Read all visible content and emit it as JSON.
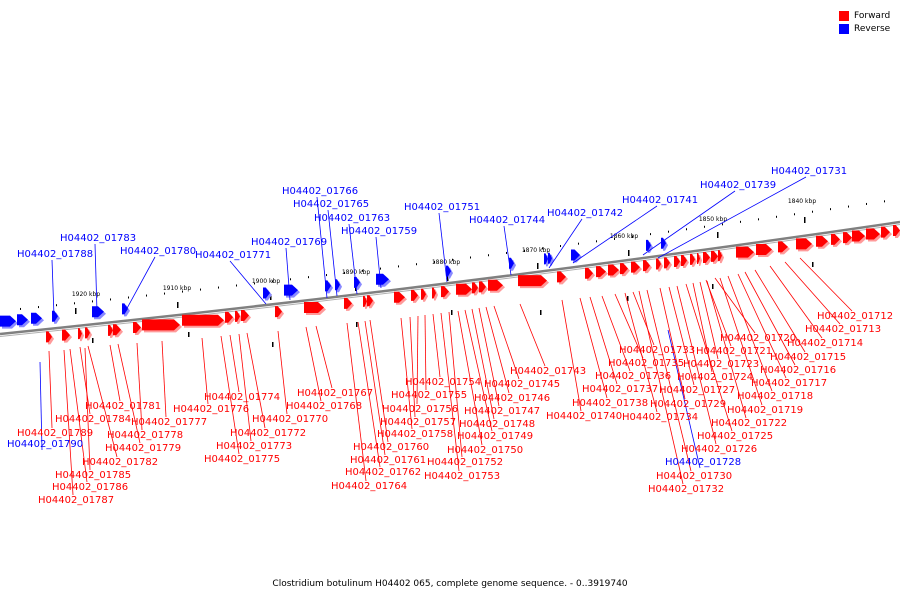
{
  "colors": {
    "forward": "#ff0000",
    "reverse": "#0000ff",
    "backbone": "#808080"
  },
  "legend": {
    "forward": "Forward",
    "reverse": "Reverse"
  },
  "caption": "Clostridium botulinum H04402 065, complete genome sequence. - 0..3919740",
  "ticks": [
    "1920 kbp",
    "1910 kbp",
    "1900 kbp",
    "1890 kbp",
    "1880 kbp",
    "1870 kbp",
    "1860 kbp",
    "1850 kbp",
    "1840 kbp"
  ],
  "reverse_labels": [
    "H04402_01731",
    "H04402_01739",
    "H04402_01741",
    "H04402_01742",
    "H04402_01744",
    "H04402_01751",
    "H04402_01759",
    "H04402_01763",
    "H04402_01765",
    "H04402_01766",
    "H04402_01769",
    "H04402_01771",
    "H04402_01780",
    "H04402_01783",
    "H04402_01788",
    "H04402_01790",
    "H04402_01728"
  ],
  "forward_labels": [
    "H04402_01712",
    "H04402_01713",
    "H04402_01714",
    "H04402_01715",
    "H04402_01716",
    "H04402_01717",
    "H04402_01718",
    "H04402_01719",
    "H04402_01720",
    "H04402_01721",
    "H04402_01722",
    "H04402_01723",
    "H04402_01724",
    "H04402_01725",
    "H04402_01726",
    "H04402_01727",
    "H04402_01729",
    "H04402_01730",
    "H04402_01732",
    "H04402_01733",
    "H04402_01734",
    "H04402_01735",
    "H04402_01736",
    "H04402_01737",
    "H04402_01738",
    "H04402_01740",
    "H04402_01743",
    "H04402_01745",
    "H04402_01746",
    "H04402_01747",
    "H04402_01748",
    "H04402_01749",
    "H04402_01750",
    "H04402_01752",
    "H04402_01753",
    "H04402_01754",
    "H04402_01755",
    "H04402_01756",
    "H04402_01757",
    "H04402_01758",
    "H04402_01760",
    "H04402_01761",
    "H04402_01762",
    "H04402_01764",
    "H04402_01767",
    "H04402_01768",
    "H04402_01770",
    "H04402_01772",
    "H04402_01773",
    "H04402_01774",
    "H04402_01775",
    "H04402_01776",
    "H04402_01777",
    "H04402_01778",
    "H04402_01779",
    "H04402_01781",
    "H04402_01782",
    "H04402_01784",
    "H04402_01785",
    "H04402_01786",
    "H04402_01787",
    "H04402_01789"
  ]
}
